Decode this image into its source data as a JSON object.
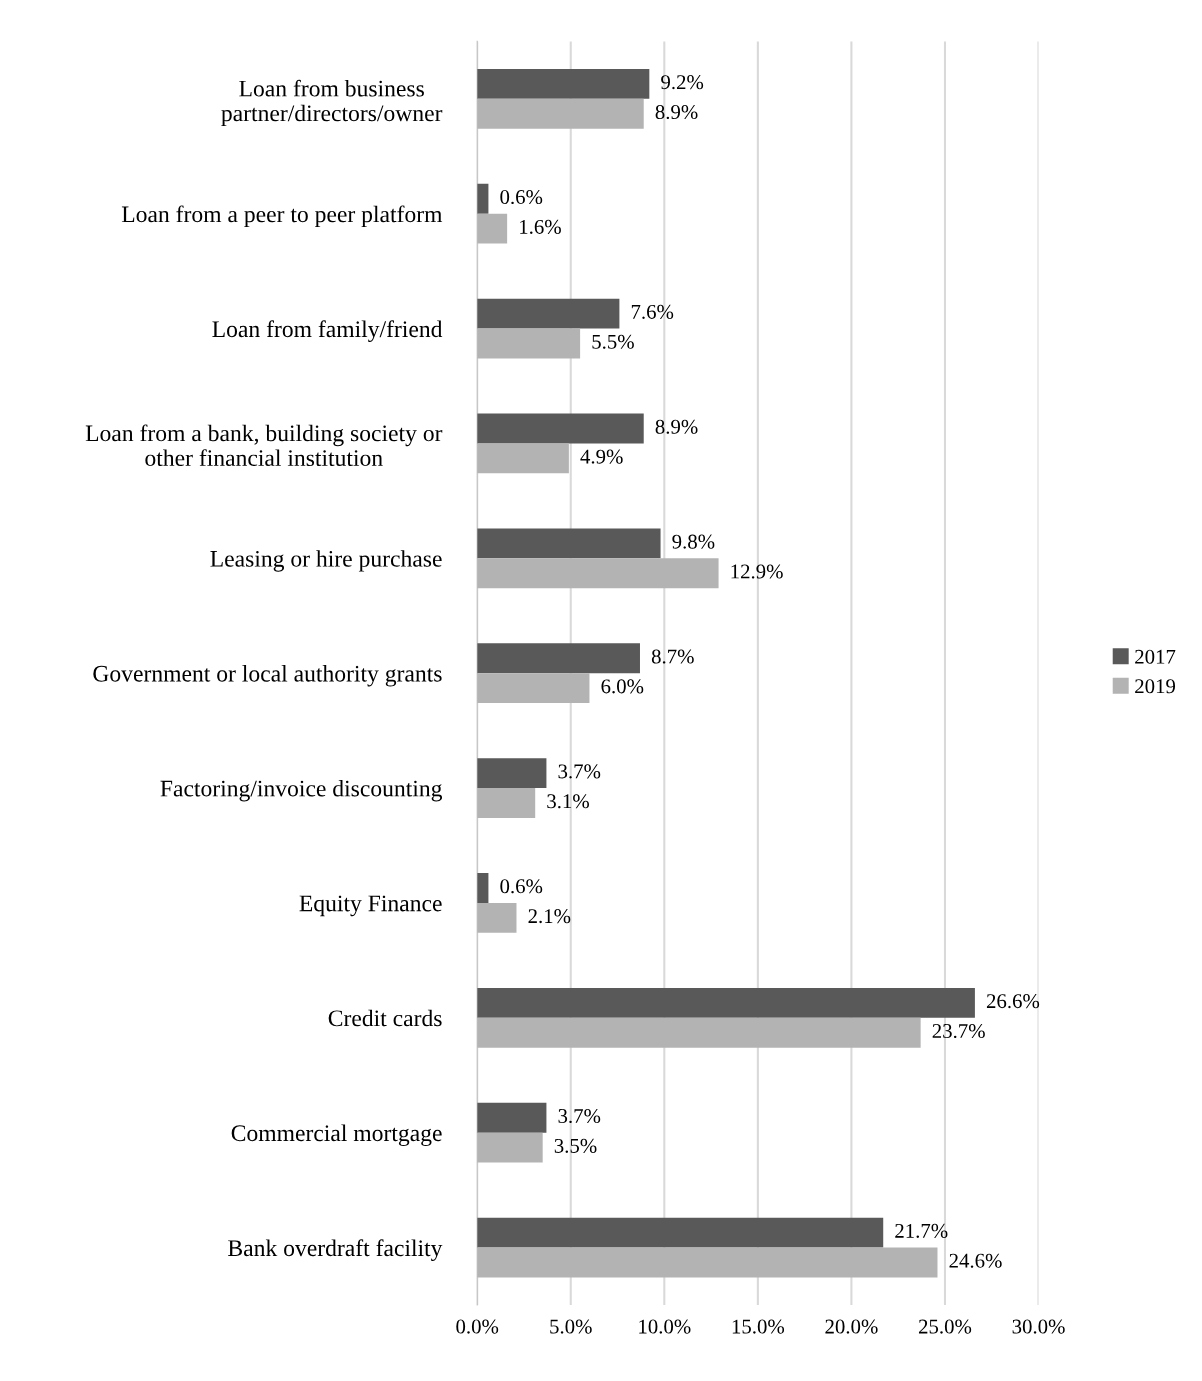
{
  "chart_data": {
    "type": "bar",
    "orientation": "horizontal",
    "categories": [
      "Loan from business\npartner/directors/owner",
      "Loan from a peer to peer platform",
      "Loan from family/friend",
      "Loan from a bank, building society or\nother financial institution",
      "Leasing or hire purchase",
      "Government or local authority grants",
      "Factoring/invoice discounting",
      "Equity Finance",
      "Credit cards",
      "Commercial mortgage",
      "Bank overdraft facility"
    ],
    "series": [
      {
        "name": "2017",
        "color": "#595959",
        "values": [
          9.2,
          0.6,
          7.6,
          8.9,
          9.8,
          8.7,
          3.7,
          0.6,
          26.6,
          3.7,
          21.7
        ],
        "value_labels": [
          "9.2%",
          "0.6%",
          "7.6%",
          "8.9%",
          "9.8%",
          "8.7%",
          "3.7%",
          "0.6%",
          "26.6%",
          "3.7%",
          "21.7%"
        ]
      },
      {
        "name": "2019",
        "color": "#b3b3b3",
        "values": [
          8.9,
          1.6,
          5.5,
          4.9,
          12.9,
          6.0,
          3.1,
          2.1,
          23.7,
          3.5,
          24.6
        ],
        "value_labels": [
          "8.9%",
          "1.6%",
          "5.5%",
          "4.9%",
          "12.9%",
          "6.0%",
          "3.1%",
          "2.1%",
          "23.7%",
          "3.5%",
          "24.6%"
        ]
      }
    ],
    "xlim": [
      0,
      30
    ],
    "xticks": [
      {
        "value": 0,
        "label": "0.0%"
      },
      {
        "value": 5,
        "label": "5.0%"
      },
      {
        "value": 10,
        "label": "10.0%"
      },
      {
        "value": 15,
        "label": "15.0%"
      },
      {
        "value": 20,
        "label": "20.0%"
      },
      {
        "value": 25,
        "label": "25.0%"
      },
      {
        "value": 30,
        "label": "30.0%"
      }
    ],
    "grid": "x",
    "legend": "right"
  }
}
